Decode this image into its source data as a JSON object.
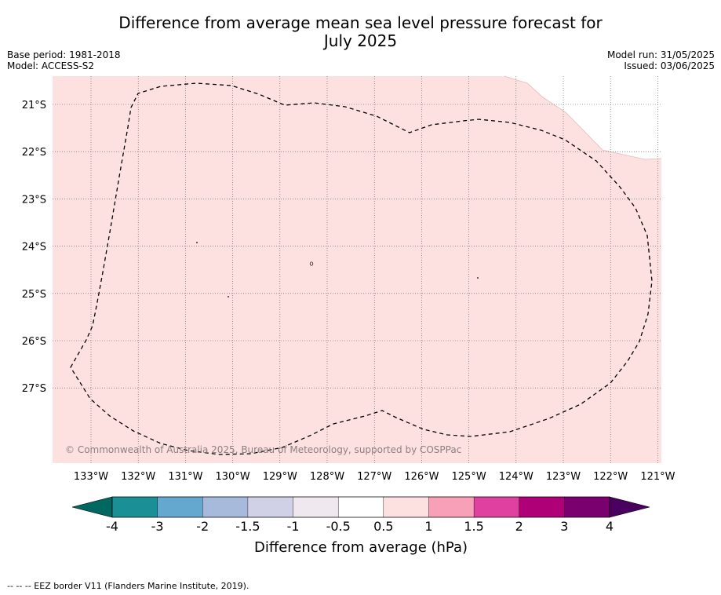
{
  "title": {
    "line1": "Difference from average mean sea level pressure forecast for",
    "line2": "July 2025"
  },
  "meta": {
    "base_period": "Base period: 1981-2018",
    "model": "Model: ACCESS-S2",
    "model_run": "Model run: 31/05/2025",
    "issued": "Issued: 03/06/2025"
  },
  "map": {
    "fill_color": "#fde0e0",
    "lon_labels": [
      "133°W",
      "132°W",
      "131°W",
      "130°W",
      "129°W",
      "128°W",
      "127°W",
      "126°W",
      "125°W",
      "124°W",
      "123°W",
      "122°W",
      "121°W"
    ],
    "lat_labels": [
      "21°S",
      "22°S",
      "23°S",
      "24°S",
      "25°S",
      "26°S",
      "27°S"
    ],
    "copyright": "© Commonwealth of Australia 2025, Bureau of Meteorology, supported by COSPPac"
  },
  "colorbar": {
    "tick_labels": [
      "-4",
      "-3",
      "-2",
      "-1.5",
      "-1",
      "-0.5",
      "0.5",
      "1",
      "1.5",
      "2",
      "3",
      "4"
    ],
    "colors": [
      "#1a8f96",
      "#64a8d0",
      "#a8badc",
      "#d0d0e6",
      "#efe8ee",
      "#ffffff",
      "#fde0e0",
      "#f8a0b8",
      "#e040a0",
      "#b00078",
      "#7a0070"
    ],
    "under_color": "#006860",
    "over_color": "#4a005e",
    "label": "Difference from average (hPa)"
  },
  "footnote": "-- -- -- EEZ border V11 (Flanders Marine Institute, 2019)."
}
